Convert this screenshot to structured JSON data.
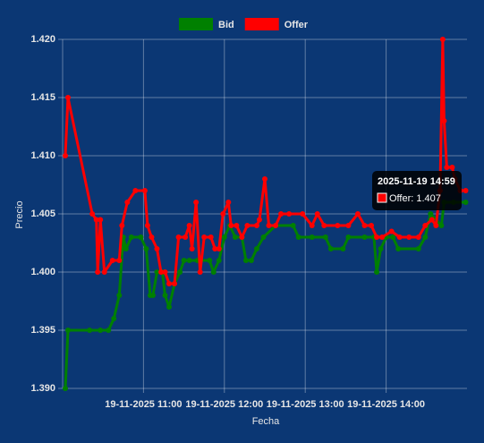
{
  "chart_data": {
    "type": "line",
    "xlabel": "Fecha",
    "ylabel": "Precio",
    "xlim": [
      "2025-11-19 10:00",
      "2025-11-19 15:00"
    ],
    "xticks": [
      {
        "value": "2025-11-19 11:00",
        "label": "19-11-2025 11:00"
      },
      {
        "value": "2025-11-19 12:00",
        "label": "19-11-2025 12:00"
      },
      {
        "value": "2025-11-19 13:00",
        "label": "19-11-2025 13:00"
      },
      {
        "value": "2025-11-19 14:00",
        "label": "19-11-2025 14:00"
      }
    ],
    "ylim": [
      1.39,
      1.42
    ],
    "yticks": [
      {
        "value": 1.39,
        "label": "1.390"
      },
      1.395,
      {
        "value": 1.4,
        "label": "1.400"
      },
      1.405,
      {
        "value": 1.41,
        "label": "1.410"
      },
      1.415,
      {
        "value": 1.42,
        "label": "1.420"
      }
    ],
    "grid": true,
    "legend": "top",
    "series": [
      {
        "name": "Bid",
        "color": "#008000",
        "x": [
          "2025-11-19 10:02",
          "2025-11-19 10:04",
          "2025-11-19 10:20",
          "2025-11-19 10:28",
          "2025-11-19 10:34",
          "2025-11-19 10:38",
          "2025-11-19 10:42",
          "2025-11-19 10:45",
          "2025-11-19 10:47",
          "2025-11-19 10:51",
          "2025-11-19 10:58",
          "2025-11-19 11:02",
          "2025-11-19 11:05",
          "2025-11-19 11:07",
          "2025-11-19 11:10",
          "2025-11-19 11:14",
          "2025-11-19 11:16",
          "2025-11-19 11:19",
          "2025-11-19 11:23",
          "2025-11-19 11:27",
          "2025-11-19 11:30",
          "2025-11-19 11:34",
          "2025-11-19 11:40",
          "2025-11-19 11:49",
          "2025-11-19 11:52",
          "2025-11-19 11:56",
          "2025-11-19 12:00",
          "2025-11-19 12:04",
          "2025-11-19 12:08",
          "2025-11-19 12:13",
          "2025-11-19 12:16",
          "2025-11-19 12:20",
          "2025-11-19 12:24",
          "2025-11-19 12:29",
          "2025-11-19 12:38",
          "2025-11-19 12:51",
          "2025-11-19 12:55",
          "2025-11-19 13:05",
          "2025-11-19 13:15",
          "2025-11-19 13:19",
          "2025-11-19 13:28",
          "2025-11-19 13:32",
          "2025-11-19 13:44",
          "2025-11-19 13:51",
          "2025-11-19 13:53",
          "2025-11-19 13:56",
          "2025-11-19 14:00",
          "2025-11-19 14:05",
          "2025-11-19 14:09",
          "2025-11-19 14:24",
          "2025-11-19 14:29",
          "2025-11-19 14:33",
          "2025-11-19 14:41",
          "2025-11-19 14:43",
          "2025-11-19 14:50",
          "2025-11-19 14:59"
        ],
        "values": [
          1.39,
          1.395,
          1.395,
          1.395,
          1.395,
          1.396,
          1.398,
          1.403,
          1.402,
          1.403,
          1.403,
          1.402,
          1.398,
          1.398,
          1.4,
          1.4,
          1.398,
          1.397,
          1.399,
          1.4,
          1.401,
          1.401,
          1.401,
          1.401,
          1.4,
          1.401,
          1.403,
          1.404,
          1.403,
          1.403,
          1.401,
          1.401,
          1.402,
          1.403,
          1.404,
          1.404,
          1.403,
          1.403,
          1.403,
          1.402,
          1.402,
          1.403,
          1.403,
          1.403,
          1.4,
          1.402,
          1.403,
          1.403,
          1.402,
          1.402,
          1.403,
          1.405,
          1.404,
          1.406,
          1.406,
          1.406
        ]
      },
      {
        "name": "Offer",
        "color": "#ff0000",
        "x": [
          "2025-11-19 10:02",
          "2025-11-19 10:04",
          "2025-11-19 10:22",
          "2025-11-19 10:25",
          "2025-11-19 10:26",
          "2025-11-19 10:28",
          "2025-11-19 10:31",
          "2025-11-19 10:37",
          "2025-11-19 10:42",
          "2025-11-19 10:44",
          "2025-11-19 10:48",
          "2025-11-19 10:54",
          "2025-11-19 11:01",
          "2025-11-19 11:03",
          "2025-11-19 11:06",
          "2025-11-19 11:10",
          "2025-11-19 11:13",
          "2025-11-19 11:16",
          "2025-11-19 11:19",
          "2025-11-19 11:23",
          "2025-11-19 11:26",
          "2025-11-19 11:31",
          "2025-11-19 11:34",
          "2025-11-19 11:36",
          "2025-11-19 11:39",
          "2025-11-19 11:42",
          "2025-11-19 11:45",
          "2025-11-19 11:50",
          "2025-11-19 11:53",
          "2025-11-19 11:56",
          "2025-11-19 11:59",
          "2025-11-19 12:03",
          "2025-11-19 12:05",
          "2025-11-19 12:09",
          "2025-11-19 12:13",
          "2025-11-19 12:17",
          "2025-11-19 12:24",
          "2025-11-19 12:26",
          "2025-11-19 12:30",
          "2025-11-19 12:33",
          "2025-11-19 12:38",
          "2025-11-19 12:42",
          "2025-11-19 12:48",
          "2025-11-19 12:58",
          "2025-11-19 13:05",
          "2025-11-19 13:09",
          "2025-11-19 13:14",
          "2025-11-19 13:24",
          "2025-11-19 13:32",
          "2025-11-19 13:39",
          "2025-11-19 13:44",
          "2025-11-19 13:49",
          "2025-11-19 13:53",
          "2025-11-19 13:57",
          "2025-11-19 14:04",
          "2025-11-19 14:10",
          "2025-11-19 14:17",
          "2025-11-19 14:24",
          "2025-11-19 14:29",
          "2025-11-19 14:34",
          "2025-11-19 14:37",
          "2025-11-19 14:40",
          "2025-11-19 14:42",
          "2025-11-19 14:43",
          "2025-11-19 14:45",
          "2025-11-19 14:49",
          "2025-11-19 14:51",
          "2025-11-19 14:55",
          "2025-11-19 14:59"
        ],
        "values": [
          1.41,
          1.415,
          1.405,
          1.4045,
          1.4,
          1.4045,
          1.4,
          1.401,
          1.401,
          1.404,
          1.406,
          1.407,
          1.407,
          1.404,
          1.403,
          1.402,
          1.4,
          1.4,
          1.399,
          1.399,
          1.403,
          1.403,
          1.404,
          1.402,
          1.406,
          1.4,
          1.403,
          1.403,
          1.402,
          1.402,
          1.405,
          1.406,
          1.404,
          1.404,
          1.403,
          1.404,
          1.404,
          1.4045,
          1.408,
          1.404,
          1.404,
          1.405,
          1.405,
          1.405,
          1.404,
          1.405,
          1.404,
          1.404,
          1.404,
          1.405,
          1.404,
          1.404,
          1.403,
          1.403,
          1.4035,
          1.403,
          1.403,
          1.403,
          1.404,
          1.4045,
          1.404,
          1.407,
          1.42,
          1.413,
          1.409,
          1.409,
          1.408,
          1.407,
          1.407
        ]
      }
    ],
    "tooltip": {
      "title": "2025-11-19 14:59",
      "text": "Offer: 1.407"
    }
  }
}
